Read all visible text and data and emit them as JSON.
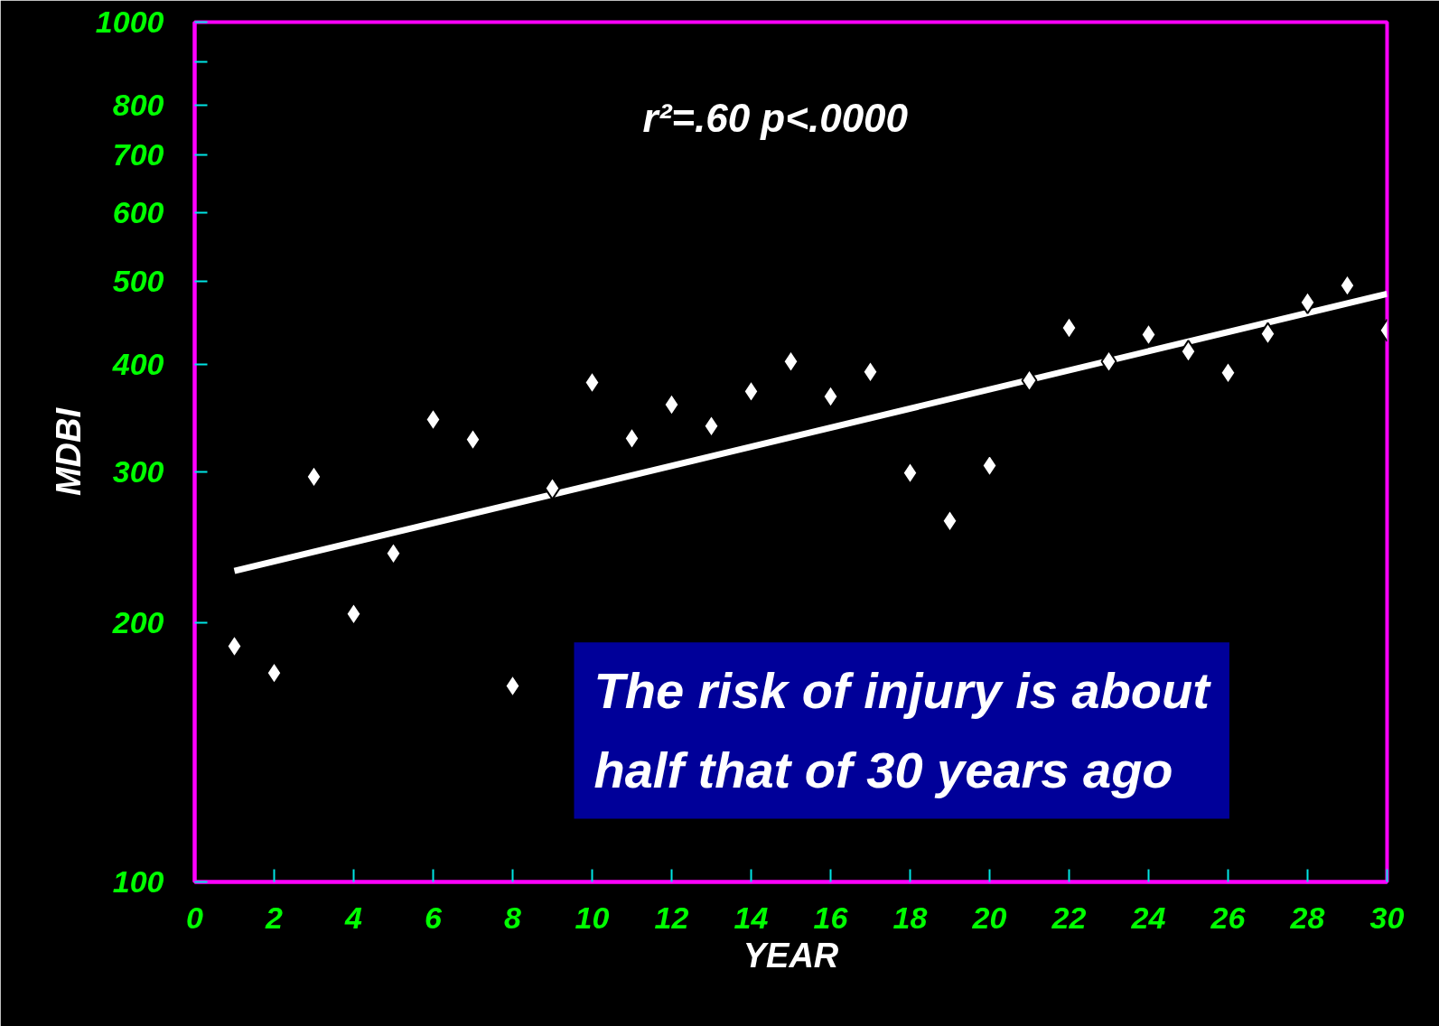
{
  "chart_data": {
    "type": "scatter",
    "xlabel": "YEAR",
    "ylabel": "MDBI",
    "log": "y",
    "grid": false,
    "marker": "diamond",
    "x": [
      1,
      2,
      3,
      4,
      5,
      6,
      7,
      8,
      9,
      10,
      11,
      12,
      13,
      14,
      15,
      16,
      17,
      18,
      19,
      20,
      21,
      22,
      23,
      24,
      25,
      26,
      27,
      28,
      29,
      30
    ],
    "xlim": [
      0,
      30
    ],
    "xticks": [
      0,
      2,
      4,
      6,
      8,
      10,
      12,
      14,
      16,
      18,
      20,
      22,
      24,
      26,
      28,
      30
    ],
    "ylim": [
      100,
      1000
    ],
    "yticks": [
      100,
      200,
      300,
      400,
      500,
      600,
      700,
      800,
      {
        "value": 900,
        "label": null
      },
      1000
    ],
    "series": [
      {
        "type": "line",
        "color": "#ffffff",
        "marker": "none",
        "x": [
          1,
          30
        ],
        "values": [
          230,
          483
        ]
      },
      {
        "color": "#ffffff",
        "values": [
          188,
          175,
          296,
          205,
          241,
          345,
          327,
          169,
          287,
          381,
          328,
          359,
          339,
          372,
          403,
          367,
          392,
          299,
          263,
          305,
          383,
          441,
          403,
          433,
          414,
          391,
          434,
          472,
          494,
          438
        ]
      }
    ],
    "annotations": [
      "r²=.60   p<.0000",
      "The risk of injury is about\nhalf that of 30 years ago"
    ]
  }
}
